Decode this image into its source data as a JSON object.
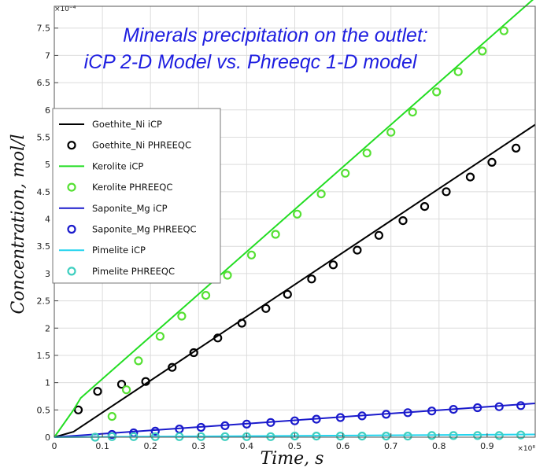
{
  "chart_data": {
    "type": "line",
    "title_lines": [
      "Minerals precipitation on the outlet:",
      "iCP 2-D Model vs. Phreeqc 1-D model"
    ],
    "xlabel": "Time, s",
    "ylabel": "Concentration, mol/l",
    "x_multiplier": "×10⁸",
    "y_multiplier": "×10⁻⁴",
    "xlim": [
      0,
      1
    ],
    "ylim": [
      0,
      7.9
    ],
    "x_ticks": [
      0,
      0.1,
      0.2,
      0.3,
      0.4,
      0.5,
      0.6,
      0.7,
      0.8,
      0.9
    ],
    "x_tick_labels": [
      "0",
      "0.1",
      "0.2",
      "0.3",
      "0.4",
      "0.5",
      "0.6",
      "0.7",
      "0.8",
      "0.9"
    ],
    "y_ticks": [
      0,
      0.5,
      1,
      1.5,
      2,
      2.5,
      3,
      3.5,
      4,
      4.5,
      5,
      5.5,
      6,
      6.5,
      7,
      7.5
    ],
    "y_tick_labels": [
      "0",
      "0.5",
      "1",
      "1.5",
      "2",
      "2.5",
      "3",
      "3.5",
      "4",
      "4.5",
      "5",
      "5.5",
      "6",
      "6.5",
      "7",
      "7.5"
    ],
    "grid": true,
    "legend_position": "left-middle",
    "series": [
      {
        "name": "Goethite_Ni iCP",
        "kind": "line",
        "color": "#000000",
        "x": [
          0,
          0.04,
          1.0
        ],
        "y": [
          0,
          0.1,
          5.73
        ]
      },
      {
        "name": "Goethite_Ni PHREEQC",
        "kind": "marker",
        "color": "#000000",
        "x": [
          0.05,
          0.09,
          0.14,
          0.19,
          0.245,
          0.29,
          0.34,
          0.39,
          0.44,
          0.485,
          0.535,
          0.58,
          0.63,
          0.675,
          0.725,
          0.77,
          0.815,
          0.865,
          0.91,
          0.96
        ],
        "y": [
          0.5,
          0.84,
          0.97,
          1.02,
          1.28,
          1.55,
          1.82,
          2.09,
          2.36,
          2.62,
          2.9,
          3.16,
          3.43,
          3.7,
          3.97,
          4.23,
          4.5,
          4.77,
          5.04,
          5.3
        ]
      },
      {
        "name": "Kerolite iCP",
        "kind": "line",
        "color": "#22dd22",
        "x": [
          0,
          0.04,
          0.055,
          1.0
        ],
        "y": [
          0,
          0.5,
          0.72,
          8.06
        ]
      },
      {
        "name": "Kerolite PHREEQC",
        "kind": "marker",
        "color": "#55e033",
        "x": [
          0.12,
          0.15,
          0.175,
          0.22,
          0.265,
          0.315,
          0.36,
          0.41,
          0.46,
          0.505,
          0.555,
          0.605,
          0.65,
          0.7,
          0.745,
          0.795,
          0.84,
          0.89,
          0.935
        ],
        "y": [
          0.38,
          0.87,
          1.4,
          1.85,
          2.22,
          2.6,
          2.97,
          3.34,
          3.72,
          4.09,
          4.46,
          4.84,
          5.21,
          5.59,
          5.96,
          6.33,
          6.7,
          7.08,
          7.45
        ]
      },
      {
        "name": "Saponite_Mg iCP",
        "kind": "line",
        "color": "#1a1acc",
        "x": [
          0,
          1.0
        ],
        "y": [
          0,
          0.62
        ]
      },
      {
        "name": "Saponite_Mg PHREEQC",
        "kind": "marker",
        "color": "#1a1acc",
        "x": [
          0.12,
          0.165,
          0.21,
          0.26,
          0.305,
          0.355,
          0.4,
          0.45,
          0.5,
          0.545,
          0.595,
          0.64,
          0.69,
          0.735,
          0.785,
          0.83,
          0.88,
          0.925,
          0.97
        ],
        "y": [
          0.05,
          0.08,
          0.11,
          0.15,
          0.18,
          0.21,
          0.24,
          0.27,
          0.3,
          0.33,
          0.36,
          0.39,
          0.42,
          0.45,
          0.48,
          0.51,
          0.54,
          0.56,
          0.58
        ]
      },
      {
        "name": "Pimelite iCP",
        "kind": "line",
        "color": "#22d4ee",
        "x": [
          0,
          1.0
        ],
        "y": [
          0,
          0.05
        ]
      },
      {
        "name": "Pimelite PHREEQC",
        "kind": "marker",
        "color": "#3fcfc0",
        "x": [
          0.085,
          0.12,
          0.165,
          0.21,
          0.26,
          0.305,
          0.355,
          0.4,
          0.45,
          0.5,
          0.545,
          0.595,
          0.64,
          0.69,
          0.735,
          0.785,
          0.83,
          0.88,
          0.925,
          0.97
        ],
        "y": [
          0,
          0.01,
          0.01,
          0.01,
          0.01,
          0.01,
          0.01,
          0.01,
          0.01,
          0.02,
          0.02,
          0.02,
          0.02,
          0.02,
          0.02,
          0.03,
          0.03,
          0.03,
          0.03,
          0.04
        ]
      }
    ]
  }
}
